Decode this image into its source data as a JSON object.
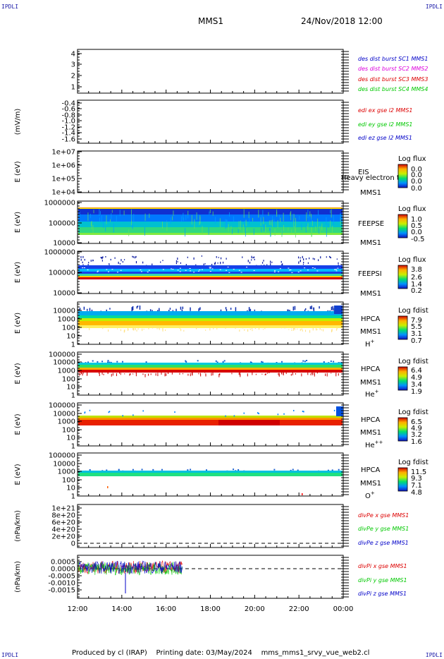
{
  "corner_label": "IPDLI",
  "header": {
    "spacecraft": "MMS1",
    "date_time": "24/Nov/2018 12:00"
  },
  "footer": {
    "produced_by": "Produced by cl (IRAP)",
    "printing_date": "Printing date: 03/May/2024",
    "file": "mms_mms1_srvy_vue_web2.cl"
  },
  "x_axis": {
    "ticks": [
      "12:00",
      "14:00",
      "16:00",
      "18:00",
      "20:00",
      "22:00",
      "00:00"
    ]
  },
  "colors": {
    "blue": "#0000c8",
    "magenta": "#dd00dd",
    "red": "#dd0000",
    "green": "#00c800"
  },
  "chart_data": [
    {
      "type": "line",
      "panel": "distributions",
      "ylabel": "",
      "ylim": [
        0.7,
        4.5
      ],
      "yticks": [
        "4",
        "3",
        "2",
        "1"
      ],
      "series": [
        {
          "name": "des dist burst SC1 MMS1",
          "color": "#0000c8",
          "values": []
        },
        {
          "name": "des dist burst SC2 MMS2",
          "color": "#dd00dd",
          "values": []
        },
        {
          "name": "des dist burst SC3 MMS3",
          "color": "#dd0000",
          "values": []
        },
        {
          "name": "des dist burst SC4 MMS4",
          "color": "#00c800",
          "values": []
        }
      ]
    },
    {
      "type": "line",
      "panel": "edi",
      "ylabel": "(mV/m)",
      "ylim": [
        -1.65,
        -0.35
      ],
      "yticks": [
        "-0.4",
        "-0.6",
        "-0.8",
        "-1.0",
        "-1.2",
        "-1.4",
        "-1.6"
      ],
      "series": [
        {
          "name": "edi ex gse l2 MMS1",
          "color": "#dd0000",
          "values": []
        },
        {
          "name": "edi ey gse l2 MMS1",
          "color": "#00c800",
          "values": []
        },
        {
          "name": "edi ez gse l2 MMS1",
          "color": "#0000c8",
          "values": []
        }
      ]
    },
    {
      "type": "heatmap",
      "panel": "eis",
      "ylabel": "E (eV)",
      "log_y": true,
      "yticks": [
        "1e+07",
        "1e+06",
        "1e+05",
        "1e+04"
      ],
      "instrument": "EIS",
      "spacecraft": "MMS1",
      "overlay_text": "Heavy electron to",
      "colorbar_label": "Log flux",
      "colorbar_ticks": [
        "0.0",
        "0.0",
        "0.0",
        "0.0"
      ],
      "coverage": "none"
    },
    {
      "type": "heatmap",
      "panel": "feepse",
      "ylabel": "E (eV)",
      "log_y": true,
      "yticks": [
        "1000000",
        "100000",
        "10000"
      ],
      "instrument": "FEEPSE",
      "spacecraft": "MMS1",
      "colorbar_label": "Log flux",
      "colorbar_ticks": [
        "1.0",
        "0.5",
        "0.0",
        "-0.5"
      ],
      "coverage": "full",
      "energy_range_ev": [
        20000,
        700000
      ]
    },
    {
      "type": "heatmap",
      "panel": "feepsi",
      "ylabel": "E (eV)",
      "log_y": true,
      "yticks": [
        "1000000",
        "100000",
        "10000"
      ],
      "instrument": "FEEPSI",
      "spacecraft": "MMS1",
      "colorbar_label": "Log flux",
      "colorbar_ticks": [
        "3.8",
        "2.6",
        "1.4",
        "0.2"
      ],
      "coverage": "full",
      "energy_range_ev": [
        45000,
        500000
      ]
    },
    {
      "type": "heatmap",
      "panel": "hpca_h",
      "ylabel": "E (eV)",
      "log_y": true,
      "yticks": [
        "10000",
        "1000",
        "100",
        "10",
        "1"
      ],
      "instrument": "HPCA",
      "spacecraft": "MMS1",
      "species": "H+",
      "colorbar_label": "Log fdist",
      "colorbar_ticks": [
        "7.9",
        "5.5",
        "3.1",
        "0.7"
      ],
      "coverage": "full",
      "energy_range_ev": [
        60,
        3000
      ]
    },
    {
      "type": "heatmap",
      "panel": "hpca_he",
      "ylabel": "E (eV)",
      "log_y": true,
      "yticks": [
        "100000",
        "10000",
        "1000",
        "100",
        "10",
        "1"
      ],
      "instrument": "HPCA",
      "spacecraft": "MMS1",
      "species": "He+",
      "colorbar_label": "Log fdist",
      "colorbar_ticks": [
        "6.4",
        "4.9",
        "3.4",
        "1.9"
      ],
      "coverage": "full",
      "energy_range_ev": [
        400,
        4000
      ]
    },
    {
      "type": "heatmap",
      "panel": "hpca_he2",
      "ylabel": "E (eV)",
      "log_y": true,
      "yticks": [
        "100000",
        "10000",
        "1000",
        "100",
        "10",
        "1"
      ],
      "instrument": "HPCA",
      "spacecraft": "MMS1",
      "species": "He++",
      "colorbar_label": "Log fdist",
      "colorbar_ticks": [
        "6.5",
        "4.9",
        "3.2",
        "1.6"
      ],
      "coverage": "full",
      "energy_range_ev": [
        300,
        2500
      ]
    },
    {
      "type": "heatmap",
      "panel": "hpca_o",
      "ylabel": "E (eV)",
      "log_y": true,
      "yticks": [
        "100000",
        "10000",
        "1000",
        "100",
        "10",
        "1"
      ],
      "instrument": "HPCA",
      "spacecraft": "MMS1",
      "species": "O+",
      "colorbar_label": "Log fdist",
      "colorbar_ticks": [
        "11.5",
        "9.3",
        "7.1",
        "4.8"
      ],
      "coverage": "full",
      "energy_range_ev": [
        500,
        1200
      ]
    },
    {
      "type": "line",
      "panel": "divpe",
      "ylabel": "(nPa/km)",
      "ylim": [
        -1e+19,
        1.1e+21
      ],
      "yticks": [
        "1e+21",
        "8e+20",
        "6e+20",
        "4e+20",
        "2e+20",
        "0"
      ],
      "zero_line": true,
      "series": [
        {
          "name": "divPe x gse MMS1",
          "color": "#dd0000",
          "values": []
        },
        {
          "name": "divPe y gse MMS1",
          "color": "#00c800",
          "values": []
        },
        {
          "name": "divPe z gse MMS1",
          "color": "#0000c8",
          "values": []
        }
      ]
    },
    {
      "type": "line",
      "panel": "divpi",
      "ylabel": "(nPa/km)",
      "ylim": [
        -0.0019,
        0.0009
      ],
      "yticks": [
        "0.0005",
        "0.0000",
        "-0.0005",
        "-0.0010",
        "-0.0015"
      ],
      "zero_line": true,
      "data_end_hours": 4.75,
      "series": [
        {
          "name": "divPi x gse MMS1",
          "color": "#dd0000",
          "values": [
            0.0001,
            0.0001,
            0.0001,
            0.0001,
            0.0001
          ]
        },
        {
          "name": "divPi y gse MMS1",
          "color": "#00c800",
          "values": [
            0.0,
            0.0,
            0.0,
            0.0,
            0.0
          ]
        },
        {
          "name": "divPi z gse MMS1",
          "color": "#0000c8",
          "values": [
            0.0001,
            0.0001,
            0.0002,
            0.0001,
            0.0001
          ]
        }
      ]
    }
  ]
}
